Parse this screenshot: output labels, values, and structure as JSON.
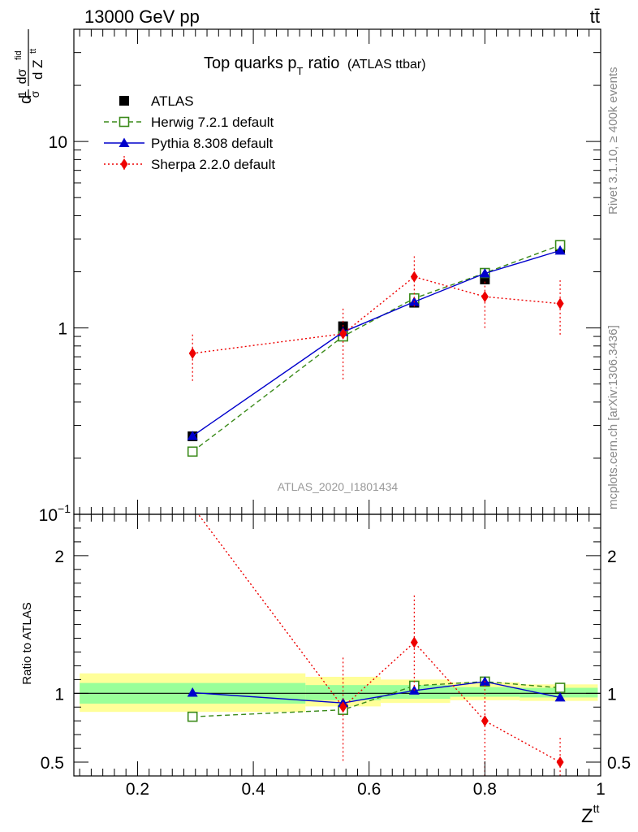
{
  "header": {
    "beam_label": "13000 GeV pp",
    "process_label": "tt̄"
  },
  "side": {
    "rivet": "Rivet 3.1.10, ≥ 400k events",
    "site": "mcplots.cern.ch [arXiv:1306.3436]"
  },
  "chart_data": [
    {
      "type": "line",
      "panel": "main",
      "title": "Top quarks p",
      "title_sub": "T",
      "title_tail": "ratio",
      "title_note": "(ATLAS ttbar)",
      "analysis_label": "ATLAS_2020_I1801434",
      "ylabel": "d(1/σ dσ^fid)/d Z^tt",
      "ylabel_parts": [
        "d",
        "1",
        "σ",
        "dσ",
        "fid",
        "d Z",
        "tt"
      ],
      "yscale": "log",
      "ylim": [
        0.1,
        40
      ],
      "xlim": [
        0.09,
        1.0
      ],
      "y_ticks": [
        {
          "v": 0.1,
          "label": "10",
          "sup": "−1"
        },
        {
          "v": 1,
          "label": "1"
        },
        {
          "v": 10,
          "label": "10"
        }
      ],
      "legend_position": "top-left",
      "series": [
        {
          "name": "ATLAS",
          "color": "#000000",
          "marker": "square-filled",
          "line": "none",
          "x": [
            0.295,
            0.555,
            0.678,
            0.8,
            0.93
          ],
          "y": [
            0.262,
            1.02,
            1.365,
            1.82,
            2.68
          ]
        },
        {
          "name": "Herwig 7.2.1 default",
          "color": "#3a8a19",
          "marker": "square-open",
          "line": "dashed",
          "x": [
            0.295,
            0.555,
            0.678,
            0.8,
            0.93
          ],
          "y": [
            0.217,
            0.9,
            1.44,
            1.97,
            2.78
          ]
        },
        {
          "name": "Pythia 8.308 default",
          "color": "#0000cc",
          "marker": "triangle",
          "line": "solid",
          "x": [
            0.295,
            0.555,
            0.678,
            0.8,
            0.93
          ],
          "y": [
            0.263,
            0.95,
            1.38,
            1.96,
            2.6
          ]
        },
        {
          "name": "Sherpa 2.2.0 default",
          "color": "#ee0000",
          "marker": "diamond",
          "line": "dotted",
          "x": [
            0.295,
            0.555,
            0.678,
            0.8,
            0.93
          ],
          "y": [
            0.73,
            0.93,
            1.88,
            1.47,
            1.35
          ],
          "err_low": [
            0.52,
            0.53,
            1.3,
            1.0,
            0.92
          ],
          "err_high": [
            0.93,
            1.3,
            2.42,
            1.82,
            1.8
          ]
        }
      ]
    },
    {
      "type": "line",
      "panel": "ratio",
      "ylabel": "Ratio to ATLAS",
      "xlabel": "Z",
      "xlabel_sup": "tt",
      "ylim": [
        0.4,
        2.3
      ],
      "xlim": [
        0.09,
        1.0
      ],
      "y_ticks": [
        {
          "v": 0.5,
          "label": "0.5"
        },
        {
          "v": 1,
          "label": "1"
        },
        {
          "v": 2,
          "label": "2"
        }
      ],
      "x_ticks": [
        {
          "v": 0.2,
          "label": "0.2"
        },
        {
          "v": 0.4,
          "label": "0.4"
        },
        {
          "v": 0.6,
          "label": "0.6"
        },
        {
          "v": 0.8,
          "label": "0.8"
        },
        {
          "v": 1.0,
          "label": "1"
        }
      ],
      "reference_line": 1,
      "uncertainty_bands": [
        {
          "x0": 0.1,
          "x1": 0.49,
          "yellow": [
            0.865,
            1.145
          ],
          "green": [
            0.925,
            1.075
          ]
        },
        {
          "x0": 0.49,
          "x1": 0.62,
          "yellow": [
            0.905,
            1.12
          ],
          "green": [
            0.95,
            1.06
          ]
        },
        {
          "x0": 0.62,
          "x1": 0.74,
          "yellow": [
            0.93,
            1.1
          ],
          "green": [
            0.96,
            1.06
          ]
        },
        {
          "x0": 0.74,
          "x1": 0.86,
          "yellow": [
            0.95,
            1.08
          ],
          "green": [
            0.975,
            1.045
          ]
        },
        {
          "x0": 0.86,
          "x1": 0.995,
          "yellow": [
            0.945,
            1.065
          ],
          "green": [
            0.97,
            1.04
          ]
        }
      ],
      "series": [
        {
          "name": "Herwig 7.2.1 default",
          "color": "#3a8a19",
          "marker": "square-open",
          "line": "dashed",
          "x": [
            0.295,
            0.555,
            0.678,
            0.8,
            0.93
          ],
          "y": [
            0.83,
            0.88,
            1.055,
            1.085,
            1.04
          ]
        },
        {
          "name": "Pythia 8.308 default",
          "color": "#0000cc",
          "marker": "triangle",
          "line": "solid",
          "x": [
            0.295,
            0.555,
            0.678,
            0.8,
            0.93
          ],
          "y": [
            1.005,
            0.93,
            1.02,
            1.085,
            0.97
          ]
        },
        {
          "name": "Sherpa 2.2.0 default",
          "color": "#ee0000",
          "marker": "diamond",
          "line": "dotted",
          "x": [
            0.18,
            0.555,
            0.678,
            0.8,
            0.93
          ],
          "y": [
            3.0,
            0.9,
            1.37,
            0.8,
            0.5
          ],
          "err_low": [
            null,
            0.51,
            1.02,
            0.4,
            0.37
          ],
          "err_high": [
            null,
            1.26,
            1.72,
            1.1,
            0.69
          ]
        }
      ]
    }
  ]
}
